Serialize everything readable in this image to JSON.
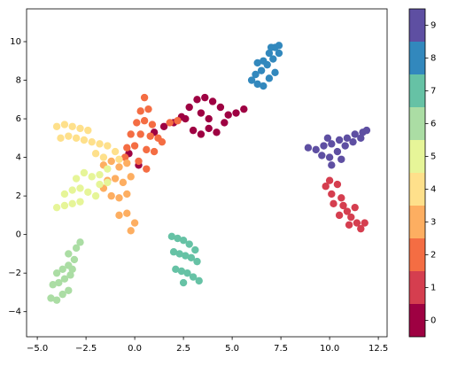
{
  "chart_data": {
    "type": "scatter",
    "xlim": [
      -5.55,
      12.95
    ],
    "ylim": [
      -5.3,
      11.7
    ],
    "xticks": [
      {
        "value": -5,
        "label": "−5.0"
      },
      2.5,
      {
        "value": -2.5,
        "label": "−2.5"
      },
      {
        "value": 0,
        "label": "0.0"
      },
      {
        "value": 5,
        "label": "5.0"
      },
      7.5,
      {
        "value": 10,
        "label": "10.0"
      },
      12.5
    ],
    "yticks": [
      {
        "value": -4,
        "label": "−4"
      },
      {
        "value": -2,
        "label": "−2"
      },
      0,
      2,
      4,
      6,
      8,
      10
    ],
    "colorbar": {
      "lim": [
        -0.5,
        9.5
      ],
      "ticks": [
        0,
        1,
        2,
        3,
        4,
        5,
        6,
        7,
        8,
        9
      ],
      "colors": [
        "#9e0142",
        "#d53e4f",
        "#f46d43",
        "#fdae61",
        "#fee08b",
        "#e6f598",
        "#abdda4",
        "#66c2a5",
        "#3288bd",
        "#5e4fa2"
      ]
    },
    "series": [
      {
        "value": 0,
        "x": [
          2.6,
          3.0,
          3.4,
          3.8,
          4.2,
          4.6,
          2.8,
          3.2,
          3.6,
          4.0,
          4.4,
          4.8,
          3.4,
          3.8,
          1.0,
          1.5,
          2.0,
          2.4,
          5.2,
          5.6,
          -0.3,
          0.2
        ],
        "y": [
          6.0,
          5.4,
          5.2,
          5.5,
          5.3,
          5.8,
          6.6,
          7.0,
          7.1,
          6.9,
          6.6,
          6.2,
          6.3,
          6.0,
          5.3,
          5.6,
          5.8,
          6.1,
          6.3,
          6.5,
          4.2,
          3.6
        ]
      },
      {
        "value": 1,
        "x": [
          9.8,
          10.1,
          10.4,
          10.2,
          10.6,
          10.9,
          10.7,
          11.1,
          11.4,
          11.0,
          11.6,
          11.8,
          10.0,
          10.5,
          11.3
        ],
        "y": [
          2.5,
          2.1,
          2.6,
          1.6,
          1.9,
          1.2,
          1.5,
          0.9,
          0.6,
          0.5,
          0.3,
          0.6,
          2.8,
          1.0,
          1.4
        ]
      },
      {
        "value": 2,
        "x": [
          0.5,
          0.3,
          0.7,
          0.1,
          0.5,
          0.9,
          -0.2,
          0.3,
          0.8,
          1.2,
          -0.4,
          0.0,
          0.6,
          1.0,
          1.4,
          0.2,
          0.6,
          1.8,
          2.2,
          -0.5
        ],
        "y": [
          7.1,
          6.4,
          6.5,
          5.8,
          5.9,
          5.7,
          5.2,
          5.2,
          5.1,
          5.0,
          4.5,
          4.6,
          4.4,
          4.3,
          4.8,
          3.8,
          3.4,
          5.8,
          5.9,
          4.0
        ]
      },
      {
        "value": 3,
        "x": [
          -1.6,
          -1.2,
          -0.8,
          -0.4,
          -1.4,
          -1.0,
          -0.6,
          -0.2,
          -1.2,
          -0.8,
          -0.4,
          -0.8,
          -0.4,
          -0.2,
          -1.6,
          0.0
        ],
        "y": [
          3.6,
          3.8,
          3.5,
          3.7,
          2.8,
          2.9,
          2.7,
          3.0,
          2.0,
          1.9,
          2.1,
          1.0,
          1.1,
          0.2,
          2.4,
          0.6
        ]
      },
      {
        "value": 4,
        "x": [
          -4.0,
          -3.6,
          -3.2,
          -2.8,
          -2.4,
          -3.8,
          -3.4,
          -3.0,
          -2.6,
          -2.2,
          -1.8,
          -1.4,
          -1.0,
          -2.0,
          -1.6,
          -0.8
        ],
        "y": [
          5.6,
          5.7,
          5.6,
          5.5,
          5.4,
          5.0,
          5.1,
          5.0,
          4.9,
          4.8,
          4.7,
          4.6,
          4.3,
          4.2,
          4.0,
          3.9
        ]
      },
      {
        "value": 5,
        "x": [
          -4.0,
          -3.6,
          -3.2,
          -2.8,
          -3.6,
          -3.2,
          -2.8,
          -2.4,
          -2.0,
          -2.2,
          -1.8,
          -1.4,
          -1.8,
          -1.4,
          -2.6,
          -3.0
        ],
        "y": [
          1.4,
          1.5,
          1.6,
          1.7,
          2.1,
          2.3,
          2.4,
          2.2,
          2.0,
          3.0,
          3.1,
          3.4,
          2.6,
          2.7,
          3.2,
          2.9
        ]
      },
      {
        "value": 6,
        "x": [
          -4.3,
          -4.0,
          -3.7,
          -3.4,
          -4.2,
          -3.9,
          -3.6,
          -3.3,
          -4.0,
          -3.7,
          -3.4,
          -3.1,
          -3.4,
          -3.0,
          -2.8,
          -3.2
        ],
        "y": [
          -3.3,
          -3.4,
          -3.1,
          -2.9,
          -2.6,
          -2.5,
          -2.3,
          -2.1,
          -2.0,
          -1.8,
          -1.6,
          -1.3,
          -1.0,
          -0.7,
          -0.4,
          -1.8
        ]
      },
      {
        "value": 7,
        "x": [
          1.9,
          2.2,
          2.5,
          2.8,
          3.1,
          2.0,
          2.3,
          2.6,
          2.9,
          3.2,
          2.1,
          2.4,
          2.7,
          3.0,
          3.3,
          2.5
        ],
        "y": [
          -0.1,
          -0.2,
          -0.3,
          -0.5,
          -0.8,
          -0.9,
          -1.0,
          -1.1,
          -1.2,
          -1.4,
          -1.8,
          -1.9,
          -2.0,
          -2.2,
          -2.4,
          -2.5
        ]
      },
      {
        "value": 8,
        "x": [
          6.3,
          6.6,
          6.9,
          7.2,
          6.2,
          6.5,
          6.8,
          7.1,
          7.4,
          6.6,
          6.9,
          7.2,
          7.4,
          6.0,
          6.3,
          7.0
        ],
        "y": [
          7.8,
          7.7,
          8.1,
          8.4,
          8.3,
          8.5,
          8.8,
          9.1,
          9.4,
          9.0,
          9.4,
          9.7,
          9.8,
          8.0,
          8.9,
          9.7
        ]
      },
      {
        "value": 9,
        "x": [
          8.9,
          9.3,
          9.7,
          10.1,
          10.5,
          10.9,
          11.3,
          11.7,
          11.9,
          9.6,
          10.0,
          10.4,
          10.8,
          11.2,
          11.6,
          10.1,
          10.6,
          9.9
        ],
        "y": [
          4.5,
          4.4,
          4.6,
          4.7,
          4.9,
          5.0,
          5.2,
          5.3,
          5.4,
          4.1,
          4.0,
          4.3,
          4.6,
          4.8,
          5.0,
          3.6,
          3.9,
          5.0
        ]
      }
    ]
  }
}
